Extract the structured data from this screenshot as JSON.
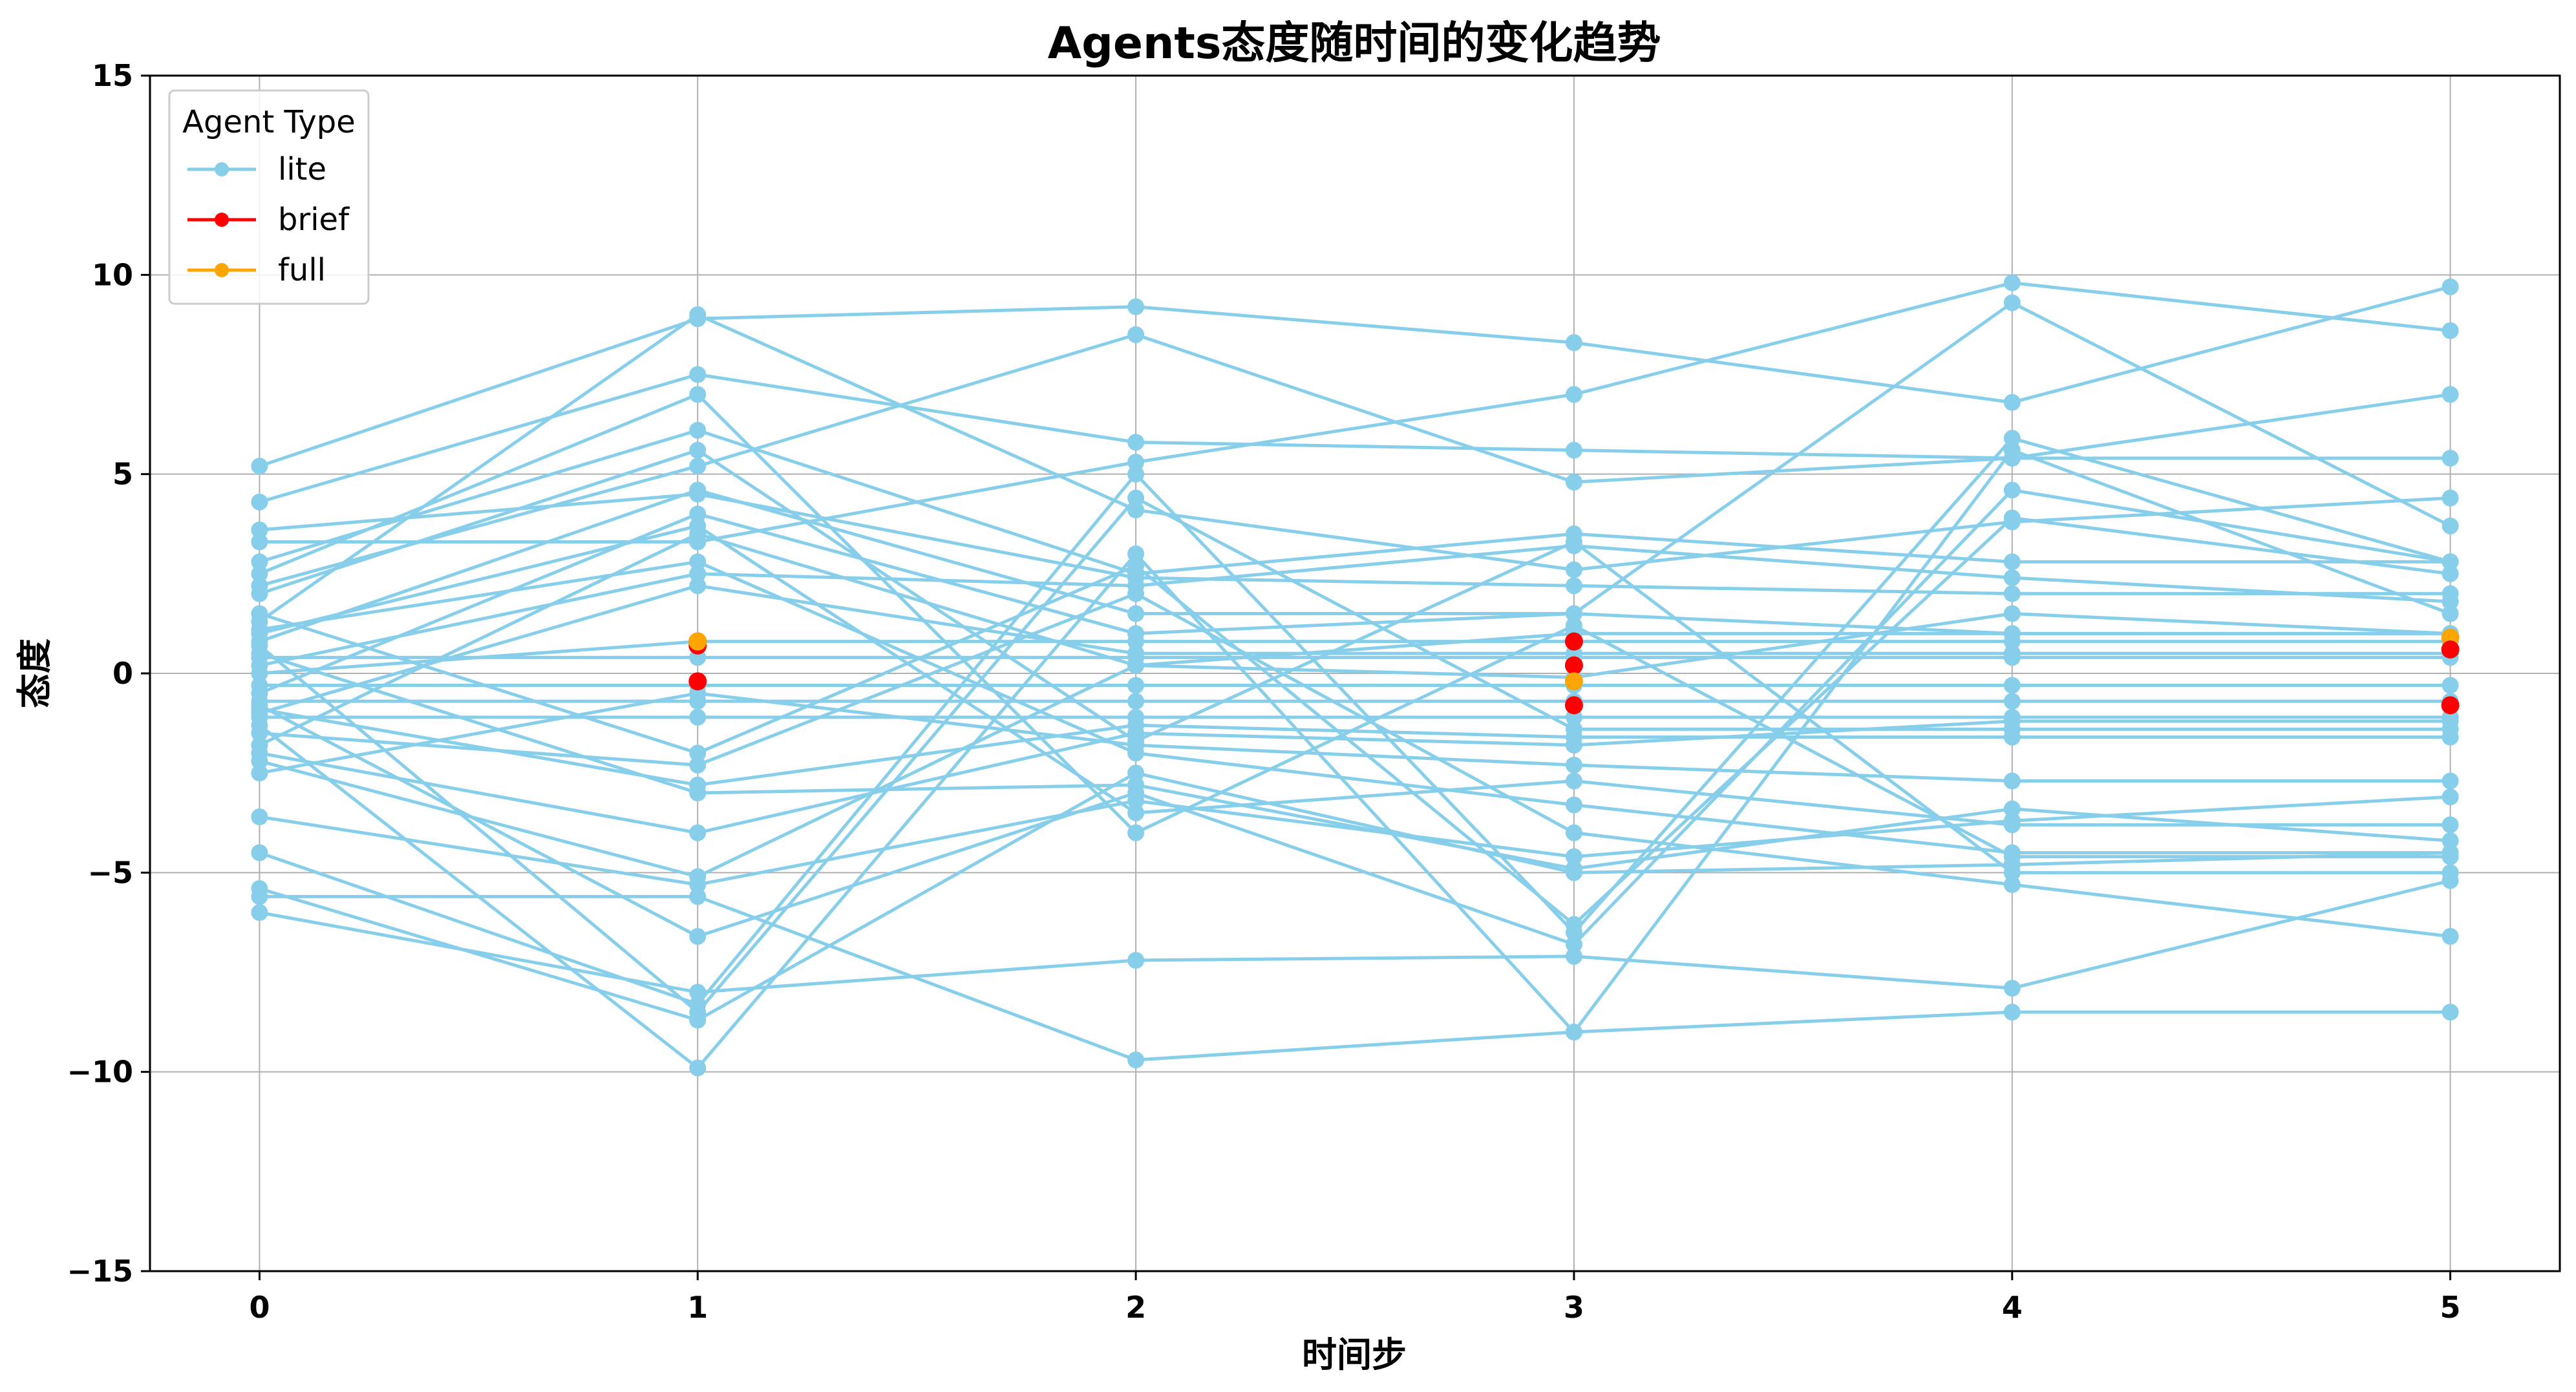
{
  "chart_data": {
    "type": "line",
    "title": "Agents态度随时间的变化趋势",
    "xlabel": "时间步",
    "ylabel": "态度",
    "x": [
      0,
      1,
      2,
      3,
      4,
      5
    ],
    "xticks": [
      "0",
      "1",
      "2",
      "3",
      "4",
      "5"
    ],
    "yticks": [
      "−15",
      "−10",
      "−5",
      "0",
      "5",
      "10",
      "15"
    ],
    "ylim": [
      -15,
      15
    ],
    "xlim": [
      -0.25,
      5.25
    ],
    "grid": true,
    "legend": {
      "title": "Agent Type",
      "position": "top-left",
      "entries": [
        {
          "name": "lite",
          "color": "#87CEEB"
        },
        {
          "name": "brief",
          "color": "#FF0000"
        },
        {
          "name": "full",
          "color": "#FFA500"
        }
      ]
    },
    "series": [
      {
        "type": "lite",
        "values": [
          5.2,
          8.9,
          9.2,
          8.3,
          6.8,
          9.7
        ]
      },
      {
        "type": "lite",
        "values": [
          4.3,
          7.5,
          5.8,
          5.6,
          5.4,
          5.4
        ]
      },
      {
        "type": "lite",
        "values": [
          3.3,
          3.3,
          5.3,
          7.0,
          9.8,
          8.6
        ]
      },
      {
        "type": "lite",
        "values": [
          2.8,
          6.1,
          2.5,
          3.5,
          2.8,
          2.8
        ]
      },
      {
        "type": "lite",
        "values": [
          2.2,
          5.2,
          8.5,
          4.8,
          5.4,
          7.0
        ]
      },
      {
        "type": "lite",
        "values": [
          1.3,
          9.0,
          4.1,
          2.6,
          3.8,
          4.4
        ]
      },
      {
        "type": "lite",
        "values": [
          0.8,
          4.6,
          1.5,
          1.5,
          9.3,
          3.7
        ]
      },
      {
        "type": "lite",
        "values": [
          0.2,
          2.5,
          2.2,
          3.2,
          2.4,
          1.8
        ]
      },
      {
        "type": "lite",
        "values": [
          -0.5,
          4.0,
          1.0,
          1.5,
          1.0,
          1.0
        ]
      },
      {
        "type": "lite",
        "values": [
          -1.0,
          2.2,
          0.5,
          0.5,
          0.5,
          0.5
        ]
      },
      {
        "type": "lite",
        "values": [
          -1.8,
          3.5,
          0.2,
          -0.1,
          1.5,
          1.0
        ]
      },
      {
        "type": "lite",
        "values": [
          -2.5,
          -0.5,
          -1.8,
          -2.3,
          -2.7,
          -2.7
        ]
      },
      {
        "type": "lite",
        "values": [
          -3.6,
          -5.3,
          -3.2,
          -4.6,
          -3.7,
          -3.1
        ]
      },
      {
        "type": "lite",
        "values": [
          -4.5,
          -8.3,
          5.0,
          -6.5,
          5.9,
          2.8
        ]
      },
      {
        "type": "lite",
        "values": [
          -5.4,
          -8.7,
          -2.5,
          -5.0,
          -4.8,
          -4.5
        ]
      },
      {
        "type": "lite",
        "values": [
          -5.6,
          -5.6,
          -9.7,
          -9.0,
          -8.5,
          -8.5
        ]
      },
      {
        "type": "lite",
        "values": [
          -6.0,
          -8.0,
          -7.2,
          -7.1,
          -7.9,
          -5.2
        ]
      },
      {
        "type": "lite",
        "values": [
          1.5,
          -2.0,
          2.7,
          -6.3,
          3.9,
          2.5
        ]
      },
      {
        "type": "lite",
        "values": [
          0.5,
          -3.0,
          -2.8,
          -4.9,
          -3.4,
          -4.2
        ]
      },
      {
        "type": "lite",
        "values": [
          -0.8,
          -6.6,
          -3.0,
          -6.8,
          4.6,
          2.8
        ]
      },
      {
        "type": "lite",
        "values": [
          -1.3,
          -9.9,
          3.0,
          -9.0,
          5.6,
          1.5
        ]
      },
      {
        "type": "lite",
        "values": [
          -2.0,
          -4.0,
          -1.5,
          -1.8,
          -1.2,
          -1.2
        ]
      },
      {
        "type": "lite",
        "values": [
          0.0,
          0.8,
          0.8,
          0.8,
          0.8,
          0.8
        ]
      },
      {
        "type": "lite",
        "values": [
          -0.3,
          -0.3,
          -0.3,
          -0.3,
          -0.3,
          -0.3
        ]
      },
      {
        "type": "lite",
        "values": [
          -0.7,
          -0.7,
          -0.7,
          -0.7,
          -0.7,
          -0.7
        ]
      },
      {
        "type": "lite",
        "values": [
          0.4,
          0.4,
          0.4,
          0.4,
          0.4,
          0.4
        ]
      },
      {
        "type": "lite",
        "values": [
          -1.1,
          -1.1,
          -1.1,
          -1.1,
          -1.1,
          -1.1
        ]
      },
      {
        "type": "lite",
        "values": [
          1.1,
          2.8,
          -2.0,
          -3.3,
          -4.5,
          -4.5
        ]
      },
      {
        "type": "lite",
        "values": [
          3.6,
          4.5,
          2.4,
          2.2,
          2.0,
          2.0
        ]
      },
      {
        "type": "lite",
        "values": [
          2.0,
          5.6,
          -1.7,
          3.3,
          -5.0,
          -5.0
        ]
      },
      {
        "type": "lite",
        "values": [
          -1.5,
          -2.3,
          2.0,
          -4.0,
          -5.3,
          -6.6
        ]
      },
      {
        "type": "lite",
        "values": [
          0.7,
          -8.5,
          4.4,
          -1.4,
          -1.4,
          -1.4
        ]
      },
      {
        "type": "lite",
        "values": [
          -2.2,
          -5.1,
          0.2,
          1.0,
          1.0,
          1.0
        ]
      },
      {
        "type": "lite",
        "values": [
          1.0,
          3.7,
          -3.5,
          -2.7,
          -3.8,
          -3.8
        ]
      },
      {
        "type": "lite",
        "values": [
          -0.9,
          -2.8,
          -1.3,
          -1.6,
          -1.6,
          -1.6
        ]
      },
      {
        "type": "lite",
        "values": [
          2.5,
          7.0,
          -4.0,
          1.2,
          -4.6,
          -4.6
        ]
      }
    ],
    "highlight_points": [
      {
        "type": "brief",
        "x": 1,
        "y": 0.8
      },
      {
        "type": "brief",
        "x": 1,
        "y": 0.7
      },
      {
        "type": "brief",
        "x": 1,
        "y": -0.2
      },
      {
        "type": "full",
        "x": 1,
        "y": 0.8
      },
      {
        "type": "brief",
        "x": 3,
        "y": 0.8
      },
      {
        "type": "brief",
        "x": 3,
        "y": 0.2
      },
      {
        "type": "brief",
        "x": 3,
        "y": -0.8
      },
      {
        "type": "full",
        "x": 3,
        "y": -0.2
      },
      {
        "type": "full",
        "x": 5,
        "y": 0.9
      },
      {
        "type": "brief",
        "x": 5,
        "y": 0.6
      },
      {
        "type": "brief",
        "x": 5,
        "y": -0.8
      }
    ]
  }
}
